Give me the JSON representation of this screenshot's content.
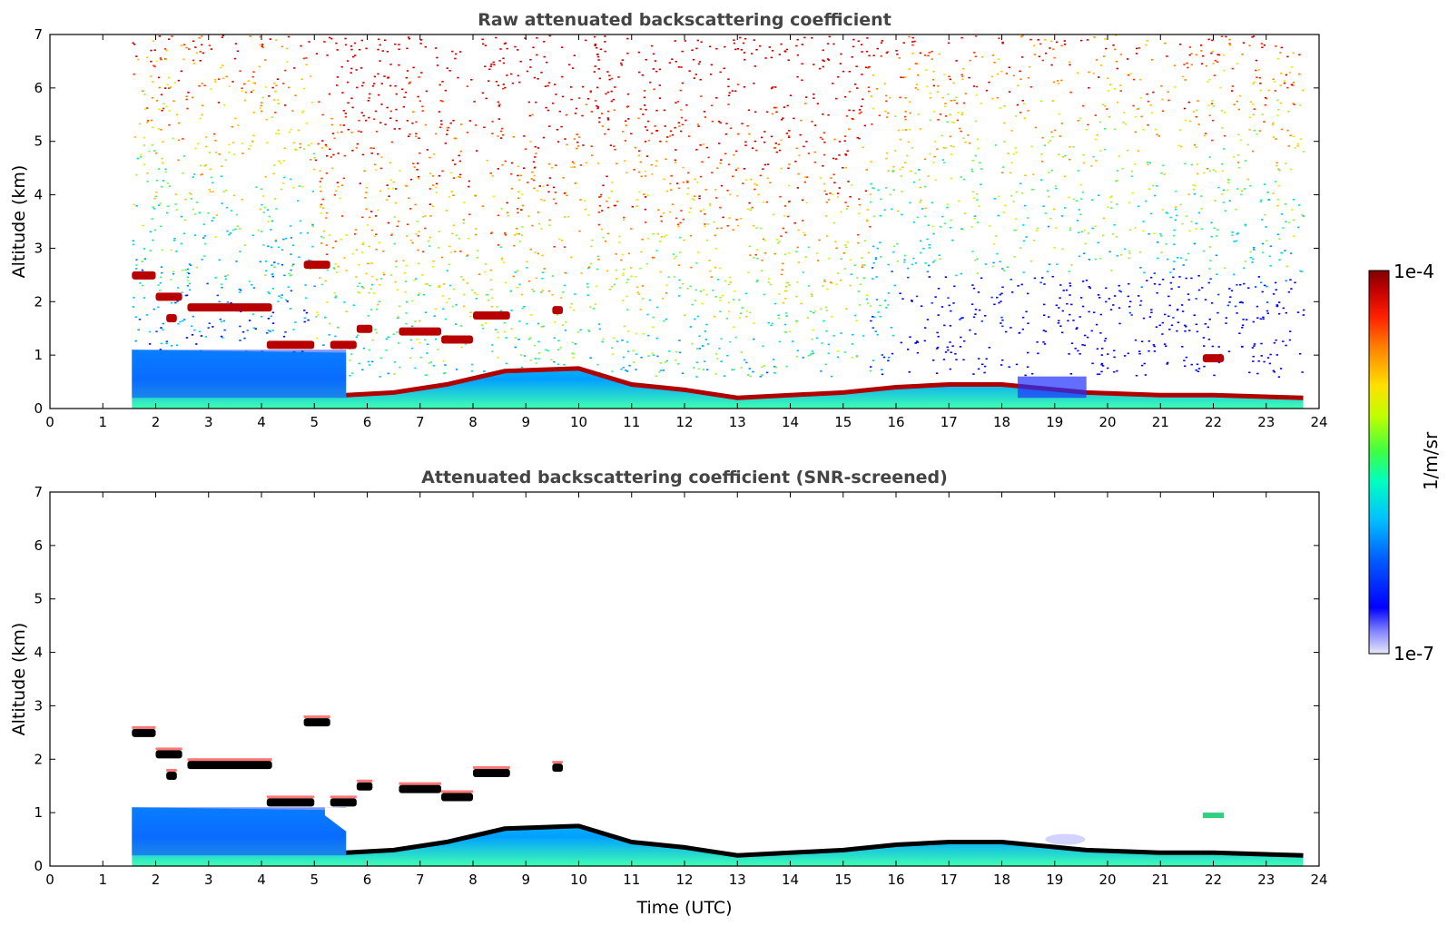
{
  "chart_data": [
    {
      "type": "heatmap",
      "title": "Raw attenuated backscattering coefficient",
      "xlabel": "",
      "ylabel": "Altitude (km)",
      "xlim": [
        0,
        24
      ],
      "ylim": [
        0,
        7
      ],
      "xticks": [
        "0",
        "1",
        "2",
        "3",
        "4",
        "5",
        "6",
        "7",
        "8",
        "9",
        "10",
        "11",
        "12",
        "13",
        "14",
        "15",
        "16",
        "17",
        "18",
        "19",
        "20",
        "21",
        "22",
        "23",
        "24"
      ],
      "yticks": [
        "0",
        "1",
        "2",
        "3",
        "4",
        "5",
        "6",
        "7"
      ],
      "data_time_range": [
        1.55,
        23.7
      ],
      "boundary_layer_top_km": [
        [
          1.55,
          0.05
        ],
        [
          5.6,
          0.25
        ],
        [
          6.5,
          0.3
        ],
        [
          7.5,
          0.45
        ],
        [
          8.6,
          0.7
        ],
        [
          10,
          0.75
        ],
        [
          11,
          0.45
        ],
        [
          12,
          0.35
        ],
        [
          13,
          0.2
        ],
        [
          14,
          0.25
        ],
        [
          15,
          0.3
        ],
        [
          16,
          0.4
        ],
        [
          17,
          0.45
        ],
        [
          18,
          0.45
        ],
        [
          19.6,
          0.3
        ],
        [
          21,
          0.25
        ],
        [
          22,
          0.25
        ],
        [
          23.7,
          0.2
        ]
      ],
      "cloud_layers_km": [
        {
          "t0": 1.55,
          "t1": 2.0,
          "alt": 2.5
        },
        {
          "t0": 2.0,
          "t1": 2.5,
          "alt": 2.1
        },
        {
          "t0": 2.2,
          "t1": 2.4,
          "alt": 1.7
        },
        {
          "t0": 2.6,
          "t1": 4.2,
          "alt": 1.9
        },
        {
          "t0": 4.1,
          "t1": 5.0,
          "alt": 1.2
        },
        {
          "t0": 4.8,
          "t1": 5.3,
          "alt": 2.7
        },
        {
          "t0": 5.3,
          "t1": 5.8,
          "alt": 1.2
        },
        {
          "t0": 5.8,
          "t1": 6.1,
          "alt": 1.5
        },
        {
          "t0": 6.6,
          "t1": 7.4,
          "alt": 1.45
        },
        {
          "t0": 7.4,
          "t1": 8.0,
          "alt": 1.3
        },
        {
          "t0": 8.0,
          "t1": 8.7,
          "alt": 1.75
        },
        {
          "t0": 9.5,
          "t1": 9.7,
          "alt": 1.85
        },
        {
          "t0": 21.8,
          "t1": 22.2,
          "alt": 0.95
        }
      ]
    },
    {
      "type": "heatmap",
      "title": "Attenuated backscattering coefficient (SNR-screened)",
      "xlabel": "Time (UTC)",
      "ylabel": "Altitude (km)",
      "xlim": [
        0,
        24
      ],
      "ylim": [
        0,
        7
      ],
      "xticks": [
        "0",
        "1",
        "2",
        "3",
        "4",
        "5",
        "6",
        "7",
        "8",
        "9",
        "10",
        "11",
        "12",
        "13",
        "14",
        "15",
        "16",
        "17",
        "18",
        "19",
        "20",
        "21",
        "22",
        "23",
        "24"
      ],
      "yticks": [
        "0",
        "1",
        "2",
        "3",
        "4",
        "5",
        "6",
        "7"
      ],
      "data_time_range": [
        1.55,
        23.7
      ],
      "boundary_layer_top_km": [
        [
          1.55,
          0.05
        ],
        [
          5.6,
          0.25
        ],
        [
          6.5,
          0.3
        ],
        [
          7.5,
          0.45
        ],
        [
          8.6,
          0.7
        ],
        [
          10,
          0.75
        ],
        [
          11,
          0.45
        ],
        [
          12,
          0.35
        ],
        [
          13,
          0.2
        ],
        [
          14,
          0.25
        ],
        [
          15,
          0.3
        ],
        [
          16,
          0.4
        ],
        [
          17,
          0.45
        ],
        [
          18,
          0.45
        ],
        [
          19.6,
          0.3
        ],
        [
          21,
          0.25
        ],
        [
          22,
          0.25
        ],
        [
          23.7,
          0.2
        ]
      ]
    }
  ],
  "colorbar": {
    "max_label": "1e-4",
    "min_label": "1e-7",
    "unit_label": "1/m/sr",
    "colors": [
      "#e8e8f8",
      "#8080ff",
      "#0000ff",
      "#0060ff",
      "#00c0ff",
      "#00ffc0",
      "#40ff40",
      "#c0ff00",
      "#ffe000",
      "#ff8000",
      "#ff2000",
      "#c00000",
      "#7f0000"
    ]
  }
}
